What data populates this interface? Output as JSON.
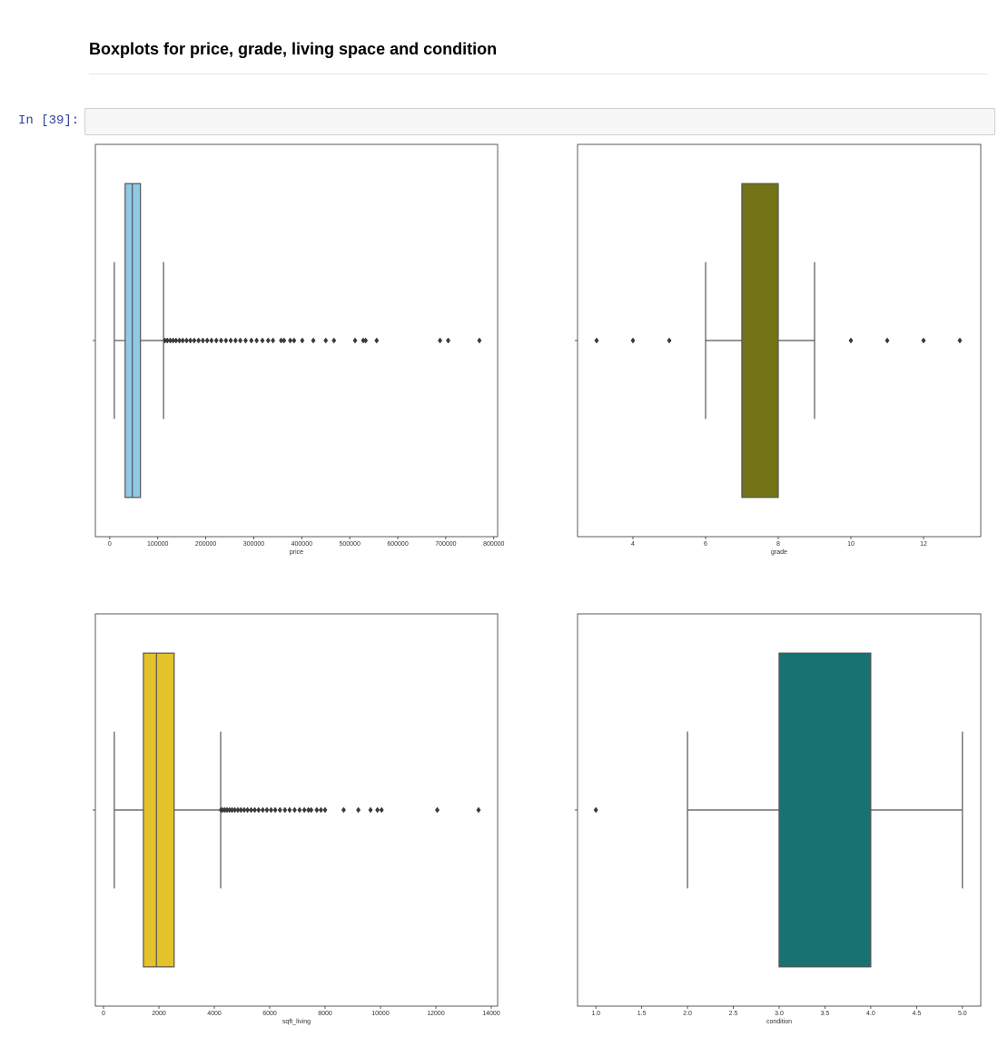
{
  "heading": "Boxplots for price, grade, living space and condition",
  "prompt": "In [39]:",
  "chart_data": [
    {
      "type": "box",
      "xlabel": "price",
      "color": "#8ecae6",
      "xlim": [
        -30000,
        808000
      ],
      "xticks": [
        0,
        100000,
        200000,
        300000,
        400000,
        500000,
        600000,
        700000,
        800000
      ],
      "box": {
        "whislo": 9500,
        "q1": 32000,
        "median": 47000,
        "q3": 64000,
        "whishi": 112000
      },
      "outliers": [
        115000,
        120000,
        126000,
        132000,
        138000,
        145000,
        152000,
        160000,
        168000,
        176000,
        185000,
        194000,
        203000,
        212000,
        222000,
        232000,
        242000,
        252000,
        262000,
        272000,
        283000,
        295000,
        306000,
        318000,
        330000,
        340000,
        357000,
        363000,
        376000,
        384000,
        401000,
        424000,
        450000,
        467000,
        511000,
        528000,
        533000,
        556000,
        688000,
        705000,
        770000
      ]
    },
    {
      "type": "box",
      "xlabel": "grade",
      "color": "#737317",
      "xlim": [
        2.475,
        13.575
      ],
      "xticks": [
        4,
        6,
        8,
        10,
        12
      ],
      "box": {
        "whislo": 6,
        "q1": 7,
        "median": 7,
        "q3": 8,
        "whishi": 9
      },
      "outliers": [
        3,
        4,
        5,
        10,
        11,
        12,
        13
      ]
    },
    {
      "type": "box",
      "xlabel": "sqft_living",
      "color": "#e3c22b",
      "xlim": [
        -295,
        14230
      ],
      "xticks": [
        0,
        2000,
        4000,
        6000,
        8000,
        10000,
        12000,
        14000
      ],
      "box": {
        "whislo": 390,
        "q1": 1440,
        "median": 1910,
        "q3": 2550,
        "whishi": 4230
      },
      "outliers": [
        4240,
        4300,
        4380,
        4460,
        4550,
        4640,
        4740,
        4850,
        4960,
        5080,
        5200,
        5330,
        5460,
        5600,
        5750,
        5900,
        6050,
        6200,
        6370,
        6550,
        6720,
        6900,
        7080,
        7250,
        7400,
        7500,
        7700,
        7850,
        8000,
        8670,
        9200,
        9640,
        9890,
        10040,
        12050,
        13540
      ]
    },
    {
      "type": "box",
      "xlabel": "condition",
      "color": "#187271",
      "xlim": [
        0.8,
        5.2
      ],
      "xticks": [
        {
          "value": 1,
          "label": "1.0"
        },
        {
          "value": 1.5,
          "label": "1.5"
        },
        {
          "value": 2,
          "label": "2.0"
        },
        {
          "value": 2.5,
          "label": "2.5"
        },
        {
          "value": 3,
          "label": "3.0"
        },
        {
          "value": 3.5,
          "label": "3.5"
        },
        {
          "value": 4,
          "label": "4.0"
        },
        {
          "value": 4.5,
          "label": "4.5"
        },
        {
          "value": 5,
          "label": "5.0"
        }
      ],
      "box": {
        "whislo": 2,
        "q1": 3,
        "median": 3,
        "q3": 4,
        "whishi": 5
      },
      "outliers": [
        1
      ]
    }
  ]
}
